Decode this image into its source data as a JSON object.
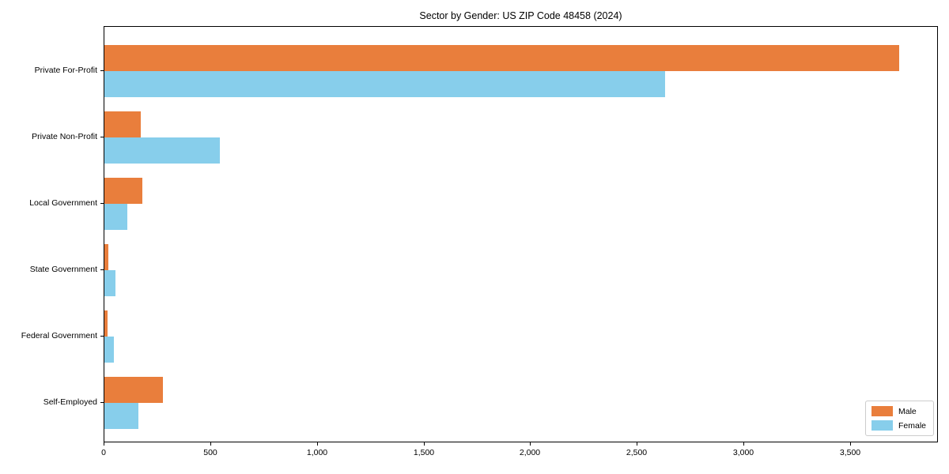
{
  "chart_data": {
    "type": "bar",
    "orientation": "horizontal",
    "title": "Sector by Gender: US ZIP Code 48458 (2024)",
    "categories": [
      "Private For-Profit",
      "Private Non-Profit",
      "Local Government",
      "State Government",
      "Federal Government",
      "Self-Employed"
    ],
    "series": [
      {
        "name": "Male",
        "color": "#E97E3C",
        "values": [
          3725,
          170,
          178,
          18,
          14,
          275
        ]
      },
      {
        "name": "Female",
        "color": "#87CEEB",
        "values": [
          2628,
          540,
          108,
          52,
          44,
          160
        ]
      }
    ],
    "xlabel": "",
    "ylabel": "",
    "xlim": [
      0,
      3912
    ],
    "x_ticks": [
      0,
      500,
      1000,
      1500,
      2000,
      2500,
      3000,
      3500
    ],
    "x_tick_labels": [
      "0",
      "500",
      "1,000",
      "1,500",
      "2,000",
      "2,500",
      "3,000",
      "3,500"
    ],
    "grid": false,
    "legend_position": "lower right",
    "frame": "full-box"
  }
}
